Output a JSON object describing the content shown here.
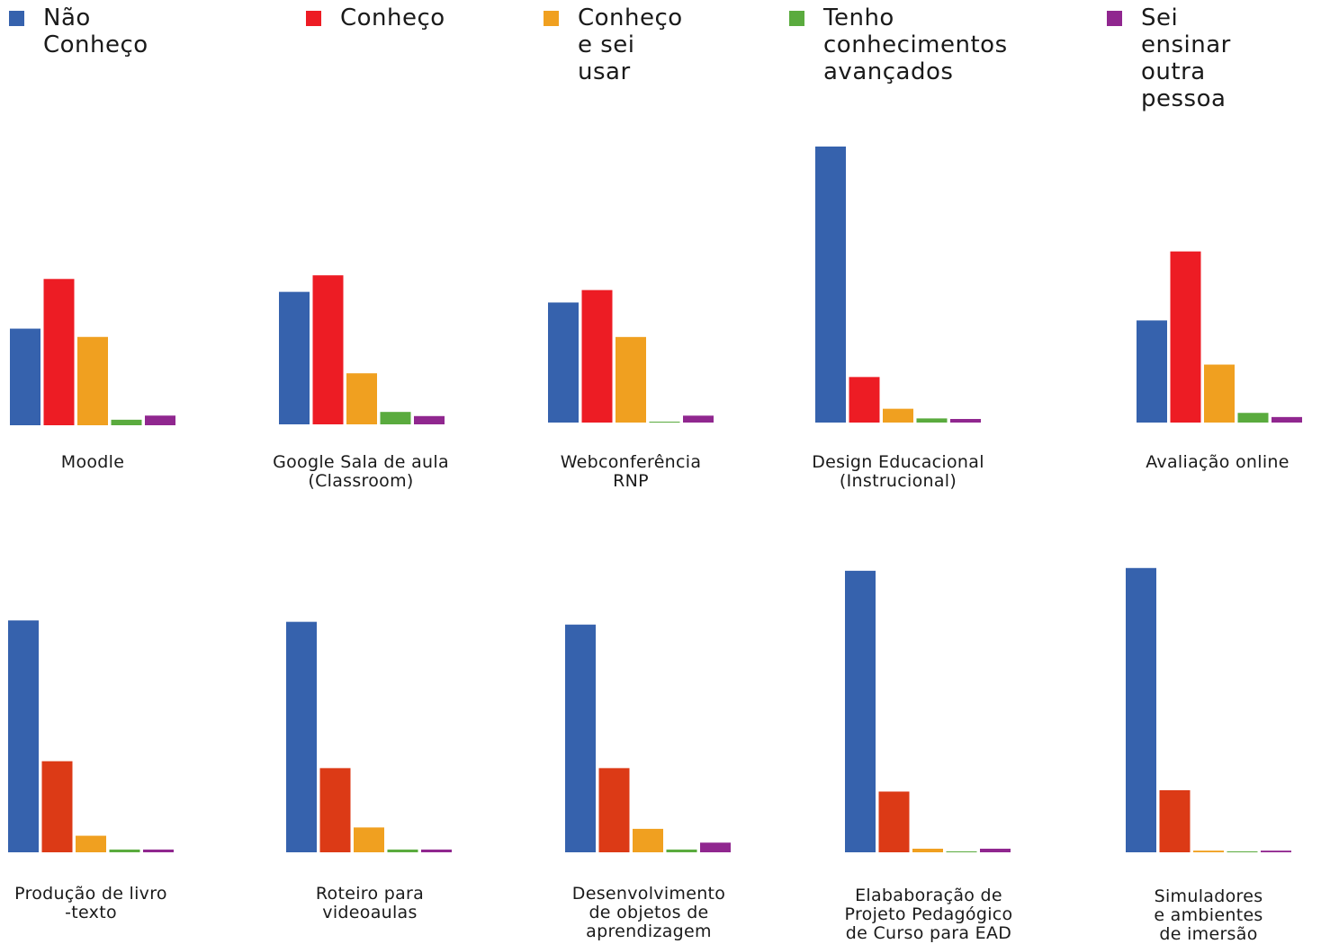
{
  "legend": [
    {
      "label": "Não Conheço",
      "color": "#3662ad"
    },
    {
      "label": "Conheço",
      "color": "#ed1c24"
    },
    {
      "label": "Conheço\ne sei usar",
      "color": "#f0a020"
    },
    {
      "label": "Tenho\nconhecimentos\navançados",
      "color": "#5aab3e"
    },
    {
      "label": "Sei ensinar\noutra pessoa",
      "color": "#90278f"
    }
  ],
  "chart_data": [
    {
      "type": "bar",
      "title": "Moodle",
      "categories": [
        "Não Conheço",
        "Conheço",
        "Conheço e sei usar",
        "Tenho conhecimentos avançados",
        "Sei ensinar outra pessoa"
      ],
      "values": [
        35,
        53,
        32,
        2,
        3.5
      ],
      "colors": [
        "#3662ad",
        "#ed1c24",
        "#f0a020",
        "#5aab3e",
        "#90278f"
      ]
    },
    {
      "type": "bar",
      "title": "Google Sala de aula\n(Classroom)",
      "categories": [
        "Não Conheço",
        "Conheço",
        "Conheço e sei usar",
        "Tenho conhecimentos avançados",
        "Sei ensinar outra pessoa"
      ],
      "values": [
        48,
        54,
        18.5,
        4.5,
        3
      ],
      "colors": [
        "#3662ad",
        "#ed1c24",
        "#f0a020",
        "#5aab3e",
        "#90278f"
      ]
    },
    {
      "type": "bar",
      "title": "Webconferência\nRNP",
      "categories": [
        "Não Conheço",
        "Conheço",
        "Conheço e sei usar",
        "Tenho conhecimentos avançados",
        "Sei ensinar outra pessoa"
      ],
      "values": [
        43.5,
        48,
        31,
        0.3,
        2.5
      ],
      "colors": [
        "#3662ad",
        "#ed1c24",
        "#f0a020",
        "#5aab3e",
        "#90278f"
      ]
    },
    {
      "type": "bar",
      "title": "Design Educacional\n(Instrucional)",
      "categories": [
        "Não Conheço",
        "Conheço",
        "Conheço e sei usar",
        "Tenho conhecimentos avançados",
        "Sei ensinar outra pessoa"
      ],
      "values": [
        100,
        16.5,
        5,
        1.5,
        1.3
      ],
      "colors": [
        "#3662ad",
        "#ed1c24",
        "#f0a020",
        "#5aab3e",
        "#90278f"
      ]
    },
    {
      "type": "bar",
      "title": "Avaliação online",
      "categories": [
        "Não Conheço",
        "Conheço",
        "Conheço e sei usar",
        "Tenho conhecimentos avançados",
        "Sei ensinar outra pessoa"
      ],
      "values": [
        37,
        62,
        21,
        3.5,
        2
      ],
      "colors": [
        "#3662ad",
        "#ed1c24",
        "#f0a020",
        "#5aab3e",
        "#90278f"
      ]
    },
    {
      "type": "bar",
      "title": "Produção de livro\n-texto",
      "categories": [
        "Não Conheço",
        "Conheço",
        "Conheço e sei usar",
        "Tenho conhecimentos avançados",
        "Sei ensinar outra pessoa"
      ],
      "values": [
        84,
        33,
        6,
        1,
        1
      ],
      "colors": [
        "#3662ad",
        "#dc3a16",
        "#f0a020",
        "#5aab3e",
        "#90278f"
      ]
    },
    {
      "type": "bar",
      "title": "Roteiro para\nvideoaulas",
      "categories": [
        "Não Conheço",
        "Conheço",
        "Conheço e sei usar",
        "Tenho conhecimentos avançados",
        "Sei ensinar outra pessoa"
      ],
      "values": [
        83.5,
        30.5,
        9,
        1,
        1
      ],
      "colors": [
        "#3662ad",
        "#dc3a16",
        "#f0a020",
        "#5aab3e",
        "#90278f"
      ]
    },
    {
      "type": "bar",
      "title": "Desenvolvimento\nde objetos de\naprendizagem",
      "categories": [
        "Não Conheço",
        "Conheço",
        "Conheço e sei usar",
        "Tenho conhecimentos avançados",
        "Sei ensinar outra pessoa"
      ],
      "values": [
        82.5,
        30.5,
        8.5,
        1,
        3.5
      ],
      "colors": [
        "#3662ad",
        "#dc3a16",
        "#f0a020",
        "#5aab3e",
        "#90278f"
      ]
    },
    {
      "type": "bar",
      "title": "Elababoração de\nProjeto Pedagógico\nde Curso para EAD",
      "categories": [
        "Não Conheço",
        "Conheço",
        "Conheço e sei usar",
        "Tenho conhecimentos avançados",
        "Sei ensinar outra pessoa"
      ],
      "values": [
        102,
        22,
        1.3,
        0.3,
        1.3
      ],
      "colors": [
        "#3662ad",
        "#dc3a16",
        "#f0a020",
        "#5aab3e",
        "#90278f"
      ]
    },
    {
      "type": "bar",
      "title": "Simuladores\ne ambientes\nde imersão",
      "categories": [
        "Não Conheço",
        "Conheço",
        "Conheço e sei usar",
        "Tenho conhecimentos avançados",
        "Sei ensinar outra pessoa"
      ],
      "values": [
        103,
        22.5,
        0.6,
        0.3,
        0.6
      ],
      "colors": [
        "#3662ad",
        "#dc3a16",
        "#f0a020",
        "#5aab3e",
        "#90278f"
      ]
    }
  ]
}
